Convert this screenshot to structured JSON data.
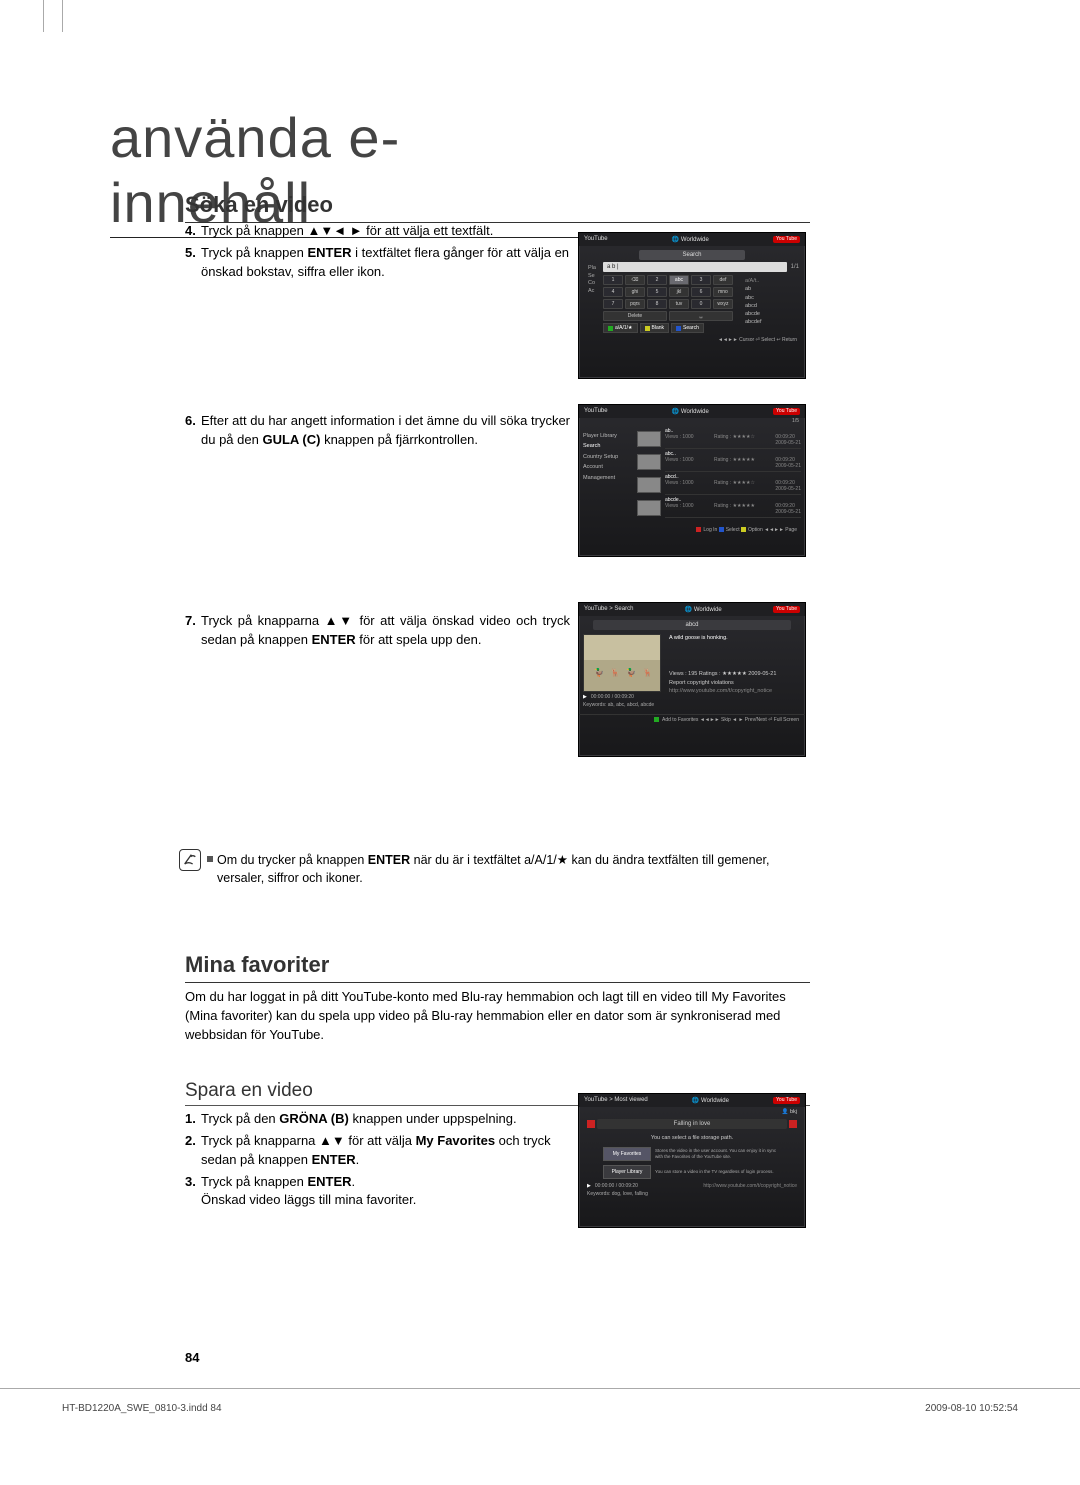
{
  "page": {
    "title": "använda e-innehåll",
    "number": "84",
    "footer_left": "HT-BD1220A_SWE_0810-3.indd   84",
    "footer_right": "2009-08-10      10:52:54"
  },
  "section1": {
    "heading": "Söka en video",
    "step4_num": "4.",
    "step4_a": "Tryck på knappen  ▲▼◄ ► för att välja ett textfält.",
    "step5_num": "5.",
    "step5_a": "Tryck på knappen ",
    "step5_b": "ENTER",
    "step5_c": " i textfältet flera gånger för att välja en önskad bokstav, siffra eller ikon.",
    "step6_num": "6.",
    "step6_a": "Efter att du har angett information i det ämne du vill söka trycker du på den ",
    "step6_b": "GULA (C)",
    "step6_c": " knappen på fjärrkontrollen.",
    "step7_num": "7.",
    "step7_a": "Tryck på knapparna  ▲▼ för att välja önskad video och tryck sedan på knappen ",
    "step7_b": "ENTER",
    "step7_c": " för att spela upp den."
  },
  "note": {
    "text_a": "Om du trycker på knappen ",
    "text_b": "ENTER",
    "text_c": " när du är i textfältet a/A/1/★ kan du ändra textfälten till gemener, versaler, siffror och ikoner."
  },
  "section2": {
    "heading": "Mina favoriter",
    "body": "Om du har loggat in på ditt YouTube-konto med Blu-ray hemmabion och lagt till en video till My Favorites (Mina favoriter) kan du spela upp video på Blu-ray hemmabion eller en dator som är synkroniserad med webbsidan för YouTube."
  },
  "section3": {
    "heading": "Spara en video",
    "step1_num": "1.",
    "step1_a": "Tryck på den ",
    "step1_b": "GRÖNA (B)",
    "step1_c": " knappen under uppspelning.",
    "step2_num": "2.",
    "step2_a": "Tryck på knapparna ▲▼ för att välja ",
    "step2_b": "My Favorites",
    "step2_c": " och tryck sedan på knappen ",
    "step2_d": "ENTER",
    "step2_e": ".",
    "step3_num": "3.",
    "step3_a": "Tryck på knappen ",
    "step3_b": "ENTER",
    "step3_c": ".",
    "step3_line2": "Önskad video läggs till mina favoriter."
  },
  "ss1": {
    "header_l": "YouTube",
    "header_m": "🌐 Worldwide",
    "badge": "You Tube",
    "search": "Search",
    "input": "a b |",
    "count": "1/1",
    "side": [
      "Pla",
      "Se",
      "Co",
      "Ac"
    ],
    "keys_row1": [
      "⌫",
      "abc",
      "def"
    ],
    "keys_row2": [
      "ghi",
      "jkl",
      "mno"
    ],
    "keys_row3": [
      "pqrs",
      "tuv",
      "wxyz"
    ],
    "keys_row4": [
      "Delete",
      "␣"
    ],
    "nums": [
      "1",
      "2",
      "3",
      "4",
      "5",
      "6",
      "7",
      "8",
      "0"
    ],
    "key_hl": "abc",
    "suggest_label": "a/A/t..",
    "suggest": [
      "ab",
      "abc",
      "abcd",
      "abcde",
      "abcdef"
    ],
    "btn1": "a/A/1/★",
    "btn2": "Blank",
    "btn3": "Search",
    "footer": "◄◄►► Cursor  ⏎ Select  ↩ Return"
  },
  "ss2": {
    "header_l": "YouTube",
    "header_m": "🌐 Worldwide",
    "badge": "You Tube",
    "count": "1/5",
    "side": [
      "Player Library",
      "Search",
      "Country Setup",
      "Account Management"
    ],
    "side_curr_idx": 1,
    "items": [
      {
        "title": "ab..",
        "views": "Views : 1000",
        "rating": "Rating : ★★★★☆",
        "time": "00:09:20",
        "date": "2009-05-21"
      },
      {
        "title": "abc..",
        "views": "Views : 1000",
        "rating": "Rating : ★★★★★",
        "time": "00:09:20",
        "date": "2009-05-21"
      },
      {
        "title": "abcd..",
        "views": "Views : 1000",
        "rating": "Rating : ★★★★☆",
        "time": "00:09:20",
        "date": "2009-05-21"
      },
      {
        "title": "abcde..",
        "views": "Views : 1000",
        "rating": "Rating : ★★★★★",
        "time": "00:09:20",
        "date": "2009-05-21"
      }
    ],
    "footer": " Log In   Select   Option  ◄◄►► Page"
  },
  "ss3": {
    "header_l": "YouTube > Search",
    "header_m": "🌐 Worldwide",
    "badge": "You Tube",
    "title": "abcd",
    "desc": "A wild goose is honking.",
    "stats": "Views : 195    Ratings : ★★★★★    2009-05-21",
    "report": "Report copyright violations",
    "url": "http://www.youtube.com/t/copyright_notice",
    "time": "00:00:00 / 00:09:20",
    "keywords": "Keywords: ab, abc, abcd, abcde",
    "footer": " Add to Favorites  ◄◄►► Skip  ◄ ► Prev/Next  ⏎ Full Screen"
  },
  "ss4": {
    "header_l": "YouTube > Most viewed",
    "header_m": "🌐 Worldwide",
    "badge": "You Tube",
    "user": "bkj",
    "title": "Falling in love",
    "prompt": "You can select a file storage path.",
    "opt1": "My Favorites",
    "opt1_desc": "Stores the video in the user account. You can enjoy it in sync with the Favorites of the YouTube site.",
    "opt2": "Player Library",
    "opt2_desc": "You can store a video in the TV regardless of login process.",
    "url": "http://www.youtube.com/t/copyright_notice",
    "time": "00:00:00 / 00:09:20",
    "keywords": "Keywords: dog, love, falling"
  }
}
